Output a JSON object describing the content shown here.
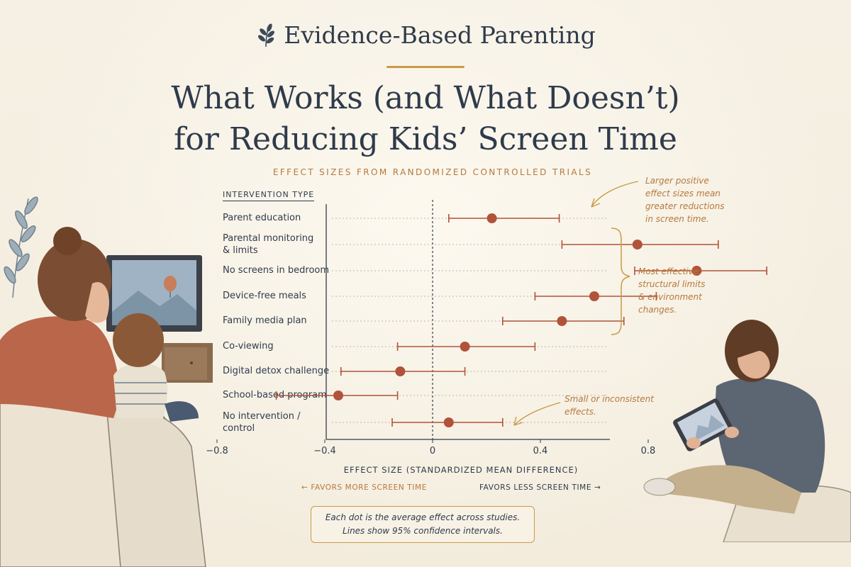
{
  "header": {
    "brand": "Evidence-Based Parenting",
    "headline_line1": "What Works (and What Doesn’t)",
    "headline_line2": "for Reducing Kids’ Screen Time",
    "subtitle": "EFFECT SIZES FROM RANDOMIZED CONTROLLED TRIALS"
  },
  "chart_data": {
    "type": "scatter",
    "subtype": "forest-plot",
    "column_header": "INTERVENTION TYPE",
    "xlabel": "EFFECT SIZE (STANDARDIZED MEAN DIFFERENCE)",
    "xlim": [
      -0.8,
      1.3
    ],
    "xticks": [
      "−0.8",
      "−0.4",
      "0",
      "0.4",
      "0.8"
    ],
    "xtick_values": [
      -0.8,
      -0.4,
      0,
      0.4,
      0.8
    ],
    "reference_line": 0,
    "marker_color": "#b0533a",
    "categories": [
      "Parent education",
      "Parental monitoring & limits",
      "No screens in bedroom",
      "Device-free meals",
      "Family media plan",
      "Co-viewing",
      "Digital detox challenge",
      "School-based program",
      "No intervention / control"
    ],
    "category_lines": [
      [
        "Parent education"
      ],
      [
        "Parental monitoring",
        "& limits"
      ],
      [
        "No screens in bedroom"
      ],
      [
        "Device-free meals"
      ],
      [
        "Family media plan"
      ],
      [
        "Co-viewing"
      ],
      [
        "Digital detox challenge"
      ],
      [
        "School-based program"
      ],
      [
        "No intervention /",
        "control"
      ]
    ],
    "estimates": [
      0.22,
      0.76,
      0.98,
      0.6,
      0.48,
      0.12,
      -0.12,
      -0.35,
      0.06
    ],
    "ci_low": [
      0.06,
      0.48,
      0.75,
      0.38,
      0.26,
      -0.13,
      -0.34,
      -0.58,
      -0.15
    ],
    "ci_high": [
      0.47,
      1.06,
      1.24,
      0.83,
      0.71,
      0.38,
      0.12,
      -0.13,
      0.26
    ],
    "direction_left": "← FAVORS MORE SCREEN TIME",
    "direction_right": "FAVORS LESS SCREEN TIME →",
    "grid": false,
    "legend": "none"
  },
  "annotations": {
    "top_right": [
      "Larger positive",
      "effect sizes mean",
      "greater reductions",
      "in screen time."
    ],
    "middle_right": [
      "Most effective:",
      "structural limits",
      "& environment",
      "changes."
    ],
    "bottom": [
      "Small or inconsistent",
      "effects."
    ]
  },
  "note": {
    "line1": "Each dot is the average effect across studies.",
    "line2": "Lines show 95% confidence intervals."
  },
  "colors": {
    "ink": "#2f3b4c",
    "accent": "#b5793e",
    "gold": "#c99a45",
    "marker": "#b0533a",
    "background": "#f5efe2"
  }
}
